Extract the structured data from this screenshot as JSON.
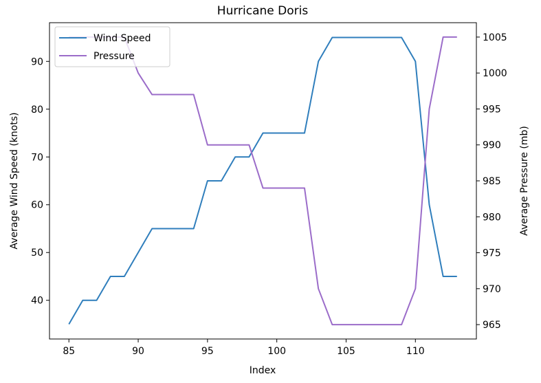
{
  "chart_data": {
    "type": "line",
    "title": "Hurricane Doris",
    "xlabel": "Index",
    "ylabel_left": "Average Wind Speed (knots)",
    "ylabel_right": "Average Pressure (mb)",
    "xlim": [
      83.6,
      114.4
    ],
    "ylim_left": [
      31.9,
      98.1
    ],
    "ylim_right": [
      963.0,
      1007.0
    ],
    "x_ticks": [
      85,
      90,
      95,
      100,
      105,
      110
    ],
    "y_ticks_left": [
      40,
      50,
      60,
      70,
      80,
      90
    ],
    "y_ticks_right": [
      965,
      970,
      975,
      980,
      985,
      990,
      995,
      1000,
      1005
    ],
    "grid": false,
    "legend_position": "upper-left",
    "x": [
      85,
      86,
      87,
      88,
      89,
      90,
      91,
      92,
      93,
      94,
      95,
      96,
      97,
      98,
      99,
      100,
      101,
      102,
      103,
      104,
      105,
      106,
      107,
      108,
      109,
      110,
      111,
      112,
      113
    ],
    "series": [
      {
        "name": "Wind Speed",
        "axis": "left",
        "color": "#2f7ebc",
        "values": [
          35,
          40,
          40,
          45,
          45,
          50,
          55,
          55,
          55,
          55,
          65,
          65,
          70,
          70,
          75,
          75,
          75,
          75,
          90,
          95,
          95,
          95,
          95,
          95,
          95,
          90,
          60,
          45,
          45
        ]
      },
      {
        "name": "Pressure",
        "axis": "right",
        "color": "#9b6cc9",
        "values": [
          1005,
          1005,
          1005,
          1005,
          1005,
          1000,
          997,
          997,
          997,
          997,
          990,
          990,
          990,
          990,
          984,
          984,
          984,
          984,
          970,
          965,
          965,
          965,
          965,
          965,
          965,
          970,
          995,
          1005,
          1005
        ]
      }
    ]
  }
}
